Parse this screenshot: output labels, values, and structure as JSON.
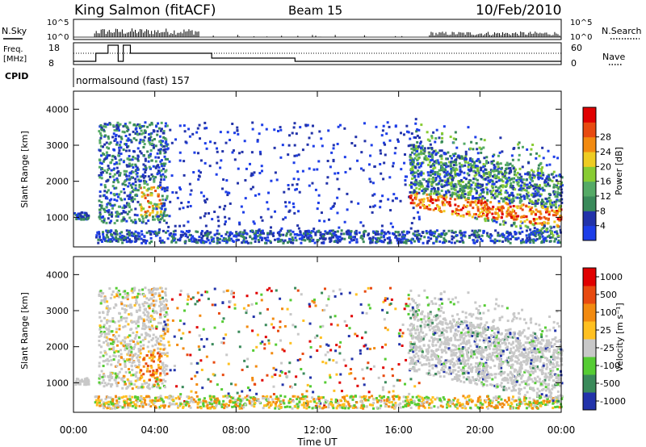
{
  "header": {
    "title": "King Salmon (fitACF)",
    "beam": "Beam 15",
    "date": "10/Feb/2010"
  },
  "top_panel": {
    "nsky_label": "N.Sky",
    "nsearch_label": "N.Search",
    "nsky_ticks": [
      "10^5",
      "10^0"
    ],
    "freq_label": "Freq.",
    "freq_unit": "[MHz]",
    "freq_ticks": [
      "18",
      "8"
    ],
    "nave_label": "Nave",
    "nave_ticks": [
      "60",
      "0"
    ],
    "cpid_label": "CPID",
    "cpid_value": "normalsound (fast) 157"
  },
  "colors": {
    "power": [
      "#1d3ee8",
      "#2233aa",
      "#3a8a5a",
      "#55aa66",
      "#88cc33",
      "#eecc22",
      "#f28a10",
      "#e84a10",
      "#e00000"
    ],
    "velocity": [
      "#e00000",
      "#e84a10",
      "#f28a10",
      "#ffc020",
      "#c8c8c8",
      "#55cc33",
      "#3a8a5a",
      "#2233aa"
    ]
  },
  "chart_data": [
    {
      "type": "heatmap",
      "name": "power",
      "ylabel": "Slant Range [km]",
      "ylim": [
        180,
        4500
      ],
      "yticks": [
        1000,
        2000,
        3000,
        4000
      ],
      "xlim_hours": [
        0,
        24
      ],
      "xticks": [
        "00:00",
        "04:00",
        "08:00",
        "12:00",
        "16:00",
        "20:00",
        "00:00"
      ],
      "colorbar_label": "Power [dB]",
      "colorbar_ticks": [
        "4",
        "8",
        "12",
        "16",
        "20",
        "24",
        "28"
      ],
      "colorbar_range": [
        0,
        32
      ]
    },
    {
      "type": "heatmap",
      "name": "velocity",
      "ylabel": "Slant Range [km]",
      "ylim": [
        180,
        4500
      ],
      "yticks": [
        1000,
        2000,
        3000,
        4000
      ],
      "xlim_hours": [
        0,
        24
      ],
      "xticks": [
        "00:00",
        "04:00",
        "08:00",
        "12:00",
        "16:00",
        "20:00",
        "00:00"
      ],
      "xlabel": "Time UT",
      "colorbar_label": "Velocity [m s⁻¹]",
      "colorbar_ticks": [
        "1000",
        "500",
        "100",
        "25",
        "-25",
        "-100",
        "-500",
        "-1000"
      ]
    }
  ]
}
